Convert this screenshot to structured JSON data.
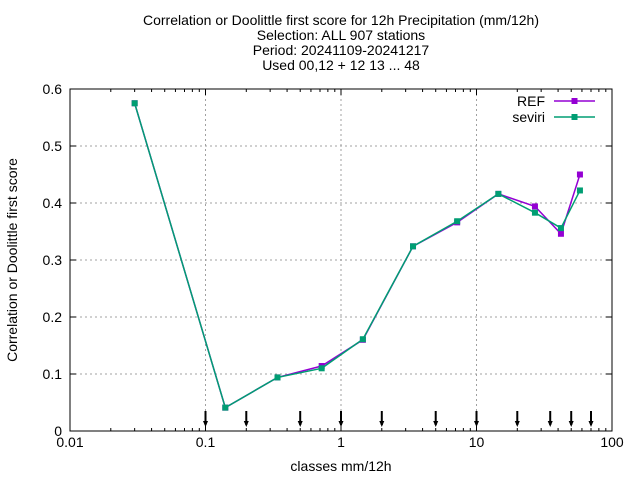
{
  "chart_data": {
    "type": "line",
    "title_lines": [
      "Correlation or Doolittle first score  for 12h Precipitation (mm/12h)",
      "Selection: ALL    907 stations",
      "Period: 20241109-20241217",
      "Used 00,12 + 12 13 ... 48"
    ],
    "xlabel": "classes mm/12h",
    "ylabel": "Correlation or Doolittle first score",
    "x_scale": "log",
    "xlim": [
      0.01,
      100
    ],
    "ylim": [
      0,
      0.6
    ],
    "x_ticks": [
      0.01,
      0.1,
      1,
      10,
      100
    ],
    "x_tick_labels": [
      "0.01",
      "0.1",
      "1",
      "10",
      "100"
    ],
    "y_ticks": [
      0,
      0.1,
      0.2,
      0.3,
      0.4,
      0.5,
      0.6
    ],
    "y_tick_labels": [
      "0",
      "0.1",
      "0.2",
      "0.3",
      "0.4",
      "0.5",
      "0.6"
    ],
    "grid": true,
    "legend_position": "top-right",
    "class_thresholds": [
      0.1,
      0.2,
      0.5,
      1,
      2,
      5,
      10,
      20,
      35,
      50,
      70
    ],
    "series": [
      {
        "name": "REF",
        "color": "#9400d3",
        "x": [
          0.03,
          0.14,
          0.34,
          0.72,
          1.45,
          3.4,
          7.2,
          14.5,
          27,
          42,
          58
        ],
        "values": [
          0.575,
          0.041,
          0.094,
          0.114,
          0.16,
          0.324,
          0.366,
          0.416,
          0.394,
          0.346,
          0.45
        ]
      },
      {
        "name": "seviri",
        "color": "#009e73",
        "x": [
          0.03,
          0.14,
          0.34,
          0.72,
          1.45,
          3.4,
          7.2,
          14.5,
          27,
          42,
          58
        ],
        "values": [
          0.575,
          0.041,
          0.094,
          0.11,
          0.161,
          0.324,
          0.368,
          0.416,
          0.383,
          0.356,
          0.422
        ]
      }
    ]
  }
}
